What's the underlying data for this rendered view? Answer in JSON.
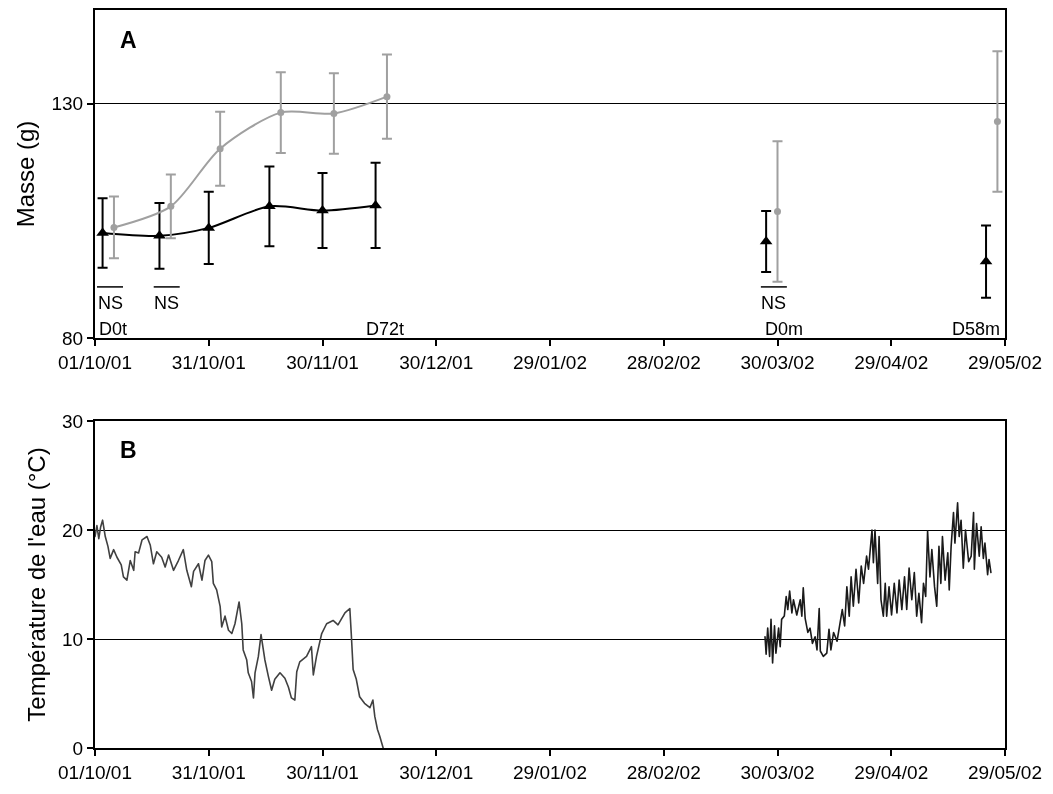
{
  "chart_data": [
    {
      "type": "line",
      "title": "A",
      "ylabel": "Masse (g)",
      "xlim": [
        "2001-10-01",
        "2002-05-29"
      ],
      "xticks": [
        {
          "value": "2001-10-01",
          "label": "01/10/01"
        },
        {
          "value": "2001-10-31",
          "label": "31/10/01"
        },
        {
          "value": "2001-11-30",
          "label": "30/11/01"
        },
        {
          "value": "2001-12-30",
          "label": "30/12/01"
        },
        {
          "value": "2002-01-29",
          "label": "29/01/02"
        },
        {
          "value": "2002-02-28",
          "label": "28/02/02"
        },
        {
          "value": "2002-03-30",
          "label": "30/03/02"
        },
        {
          "value": "2002-04-29",
          "label": "29/04/02"
        },
        {
          "value": "2002-05-29",
          "label": "29/05/02"
        }
      ],
      "ylim": [
        80,
        150
      ],
      "yticks": [
        80,
        130
      ],
      "grid": "y",
      "series": [
        {
          "type": "line",
          "color": "#000000",
          "marker": "triangle",
          "x": [
            "2001-10-03",
            "2001-10-18",
            "2001-10-31",
            "2001-11-16",
            "2001-11-30",
            "2001-12-14"
          ],
          "values": [
            102.4,
            101.8,
            103.5,
            108.1,
            107.2,
            108.3
          ],
          "errors": [
            7.4,
            7,
            7.7,
            8.5,
            8,
            9.1
          ]
        },
        {
          "type": "line",
          "color": "#a0a0a0",
          "marker": "circle",
          "x": [
            "2001-10-06",
            "2001-10-21",
            "2001-11-03",
            "2001-11-19",
            "2001-12-03",
            "2001-12-17"
          ],
          "values": [
            103.6,
            108.1,
            120.4,
            128.1,
            127.9,
            131.5
          ],
          "errors": [
            6.6,
            6.8,
            7.9,
            8.6,
            8.6,
            9
          ]
        },
        {
          "type": "scatter",
          "color": "#000000",
          "marker": "triangle",
          "x": [
            "2002-03-27",
            "2002-05-24"
          ],
          "values": [
            100.6,
            96.3
          ],
          "errors": [
            6.5,
            7.7
          ]
        },
        {
          "type": "scatter",
          "color": "#a0a0a0",
          "marker": "circle",
          "x": [
            "2002-03-30",
            "2002-05-27"
          ],
          "values": [
            107.0,
            126.2
          ],
          "errors": [
            15,
            15
          ]
        }
      ],
      "annotations": [
        "NS",
        "NS",
        "NS",
        "D0t",
        "D72t",
        "D0m",
        "D58m"
      ]
    },
    {
      "type": "line",
      "title": "B",
      "ylabel": "Température de l'eau (°C)",
      "xlim": [
        "2001-10-01",
        "2002-05-29"
      ],
      "xticks": [
        {
          "value": "2001-10-01",
          "label": "01/10/01"
        },
        {
          "value": "2001-10-31",
          "label": "31/10/01"
        },
        {
          "value": "2001-11-30",
          "label": "30/11/01"
        },
        {
          "value": "2001-12-30",
          "label": "30/12/01"
        },
        {
          "value": "2002-01-29",
          "label": "29/01/02"
        },
        {
          "value": "2002-02-28",
          "label": "28/02/02"
        },
        {
          "value": "2002-03-30",
          "label": "30/03/02"
        },
        {
          "value": "2002-04-29",
          "label": "29/04/02"
        },
        {
          "value": "2002-05-29",
          "label": "29/05/02"
        }
      ],
      "ylim": [
        0,
        30
      ],
      "yticks": [
        0,
        10,
        20,
        30
      ],
      "grid": "y",
      "series": [
        {
          "color": "#404040",
          "x": [
            "2001-10-01T00:00",
            "2001-10-01T12:00",
            "2001-10-02T00:00",
            "2001-10-02T12:00",
            "2001-10-03T00:00",
            "2001-10-03T17:00",
            "2001-10-04T10:00",
            "2001-10-05T00:00",
            "2001-10-05T22:00",
            "2001-10-06T19:00",
            "2001-10-07T22:00",
            "2001-10-08T12:00",
            "2001-10-09T10:00",
            "2001-10-10T07:00",
            "2001-10-11T05:00",
            "2001-10-11T14:00",
            "2001-10-12T12:00",
            "2001-10-13T10:00",
            "2001-10-14T17:00",
            "2001-10-15T14:00",
            "2001-10-16T10:00",
            "2001-10-17T07:00",
            "2001-10-18T14:00",
            "2001-10-19T12:00",
            "2001-10-20T10:00",
            "2001-10-21T17:00",
            "2001-10-23T00:00",
            "2001-10-24T07:00",
            "2001-10-25T05:00",
            "2001-10-26T10:00",
            "2001-10-27T00:00",
            "2001-10-28T07:00",
            "2001-10-29T05:00",
            "2001-10-30T00:00",
            "2001-10-30T22:00",
            "2001-10-31T19:00",
            "2001-11-01T05:00",
            "2001-11-02T02:00",
            "2001-11-03T00:00",
            "2001-11-03T10:00",
            "2001-11-04T07:00",
            "2001-11-05T05:00",
            "2001-11-06T02:00",
            "2001-11-06T22:00",
            "2001-11-08T00:00",
            "2001-11-08T17:00",
            "2001-11-09T02:00",
            "2001-11-10T00:00",
            "2001-11-10T10:00",
            "2001-11-11T07:00",
            "2001-11-11T19:00",
            "2001-11-12T05:00",
            "2001-11-13T02:00",
            "2001-11-13T19:00",
            "2001-11-14T19:00",
            "2001-11-15T17:00",
            "2001-11-16T14:00",
            "2001-11-17T10:00",
            "2001-11-18T19:00",
            "2001-11-20T02:00",
            "2001-11-21T00:00",
            "2001-11-21T19:00",
            "2001-11-22T17:00",
            "2001-11-23T05:00",
            "2001-11-24T00:00",
            "2001-11-25T19:00",
            "2001-11-27T02:00",
            "2001-11-27T14:00",
            "2001-11-28T10:00",
            "2001-11-29T19:00",
            "2001-12-01T02:00",
            "2001-12-02T19:00",
            "2001-12-04T02:00",
            "2001-12-05T22:00",
            "2001-12-07T05:00",
            "2001-12-07T14:00",
            "2001-12-08T02:00",
            "2001-12-08T22:00",
            "2001-12-09T19:00",
            "2001-12-11T02:00",
            "2001-12-12T12:00",
            "2001-12-13T07:00",
            "2001-12-13T19:00",
            "2001-12-14T12:00",
            "2001-12-15T02:00",
            "2001-12-16T00:00"
          ],
          "values": [
            19.4,
            20.4,
            19.2,
            20.3,
            20.9,
            19.4,
            18.5,
            17.4,
            18.2,
            17.5,
            16.8,
            15.7,
            15.4,
            17.2,
            16.3,
            18.0,
            17.9,
            19.1,
            19.4,
            18.6,
            16.9,
            18.0,
            17.5,
            16.6,
            17.7,
            16.3,
            17.2,
            18.2,
            16.3,
            14.8,
            16.2,
            16.9,
            15.4,
            17.2,
            17.7,
            17.1,
            15.1,
            14.5,
            13.0,
            11.1,
            12.1,
            10.8,
            10.5,
            11.4,
            13.4,
            11.4,
            9.0,
            8.1,
            6.9,
            6.1,
            4.6,
            6.9,
            8.4,
            10.4,
            8.1,
            6.6,
            5.3,
            6.3,
            6.9,
            6.4,
            5.6,
            4.6,
            4.4,
            7.0,
            7.9,
            8.4,
            9.3,
            6.7,
            8.4,
            10.5,
            11.4,
            11.7,
            11.3,
            12.4,
            12.8,
            10.5,
            7.2,
            6.3,
            4.7,
            4.1,
            3.7,
            4.4,
            2.9,
            1.7,
            1.1,
            0.0
          ]
        },
        {
          "color": "#1a1a1a",
          "x": [
            "2002-03-26T17:00",
            "2002-03-27T00:00",
            "2002-03-27T10:00",
            "2002-03-27T22:00",
            "2002-03-28T07:00",
            "2002-03-28T17:00",
            "2002-03-29T05:00",
            "2002-03-29T14:00",
            "2002-03-30T07:00",
            "2002-03-30T17:00",
            "2002-03-31T02:00",
            "2002-03-31T19:00",
            "2002-04-01T07:00",
            "2002-04-01T17:00",
            "2002-04-02T05:00",
            "2002-04-02T19:00",
            "2002-04-03T05:00",
            "2002-04-04T02:00",
            "2002-04-05T00:00",
            "2002-04-05T10:00",
            "2002-04-05T19:00",
            "2002-04-06T07:00",
            "2002-04-07T00:00",
            "2002-04-07T14:00",
            "2002-04-08T05:00",
            "2002-04-08T22:00",
            "2002-04-09T10:00",
            "2002-04-10T00:00",
            "2002-04-10T07:00",
            "2002-04-11T02:00",
            "2002-04-12T00:00",
            "2002-04-12T14:00",
            "2002-04-13T02:00",
            "2002-04-13T19:00",
            "2002-04-14T17:00",
            "2002-04-16T02:00",
            "2002-04-16T17:00",
            "2002-04-17T07:00",
            "2002-04-17T22:00",
            "2002-04-18T10:00",
            "2002-04-19T00:00",
            "2002-04-19T17:00",
            "2002-04-20T10:00",
            "2002-04-21T02:00",
            "2002-04-21T17:00",
            "2002-04-22T12:00",
            "2002-04-23T00:00",
            "2002-04-23T22:00",
            "2002-04-24T07:00",
            "2002-04-24T17:00",
            "2002-04-25T10:00",
            "2002-04-25T19:00",
            "2002-04-26T07:00",
            "2002-04-26T22:00",
            "2002-04-27T10:00",
            "2002-04-27T19:00",
            "2002-04-28T10:00",
            "2002-04-29T02:00",
            "2002-04-29T19:00",
            "2002-04-30T12:00",
            "2002-05-01T02:00",
            "2002-05-01T19:00",
            "2002-05-02T12:00",
            "2002-05-03T02:00",
            "2002-05-03T17:00",
            "2002-05-04T10:00",
            "2002-05-05T02:00",
            "2002-05-05T17:00",
            "2002-05-06T07:00",
            "2002-05-07T00:00",
            "2002-05-07T12:00",
            "2002-05-08T02:00",
            "2002-05-08T14:00",
            "2002-05-09T05:00",
            "2002-05-09T17:00",
            "2002-05-10T10:00",
            "2002-05-11T00:00",
            "2002-05-11T14:00",
            "2002-05-12T02:00",
            "2002-05-12T12:00",
            "2002-05-13T05:00",
            "2002-05-13T22:00",
            "2002-05-14T07:00",
            "2002-05-14T19:00",
            "2002-05-15T10:00",
            "2002-05-15T19:00",
            "2002-05-16T12:00",
            "2002-05-16T22:00",
            "2002-05-17T10:00",
            "2002-05-18T00:00",
            "2002-05-18T14:00",
            "2002-05-19T10:00",
            "2002-05-20T02:00",
            "2002-05-20T17:00",
            "2002-05-20T22:00",
            "2002-05-21T12:00",
            "2002-05-22T05:00",
            "2002-05-22T17:00",
            "2002-05-23T07:00",
            "2002-05-23T17:00",
            "2002-05-24T10:00",
            "2002-05-24T19:00",
            "2002-05-25T07:00"
          ],
          "values": [
            10.2,
            8.6,
            11.0,
            8.4,
            11.8,
            7.8,
            11.2,
            8.7,
            11.0,
            9.3,
            11.8,
            12.1,
            13.9,
            12.7,
            14.4,
            12.4,
            13.6,
            12.2,
            13.6,
            12.1,
            14.7,
            11.9,
            10.6,
            11.0,
            9.6,
            10.2,
            9.0,
            12.8,
            8.9,
            8.4,
            8.7,
            10.9,
            9.0,
            10.6,
            9.8,
            12.7,
            11.2,
            14.8,
            12.1,
            15.7,
            13.0,
            16.4,
            13.3,
            16.7,
            15.1,
            17.6,
            16.4,
            20.0,
            17.0,
            20.0,
            15.1,
            19.4,
            13.6,
            12.1,
            15.1,
            12.1,
            14.8,
            12.2,
            15.1,
            12.4,
            15.4,
            12.7,
            15.7,
            12.7,
            16.5,
            13.6,
            16.1,
            12.1,
            14.2,
            11.5,
            15.1,
            13.9,
            19.9,
            15.7,
            18.2,
            14.8,
            13.0,
            18.5,
            15.1,
            19.4,
            15.4,
            17.9,
            14.5,
            18.5,
            21.6,
            18.8,
            22.5,
            19.4,
            20.9,
            16.5,
            20.0,
            17.1,
            17.6,
            21.6,
            16.4,
            20.6,
            17.6,
            20.3,
            17.4,
            18.8,
            15.9,
            17.3,
            16.1
          ]
        }
      ]
    }
  ]
}
